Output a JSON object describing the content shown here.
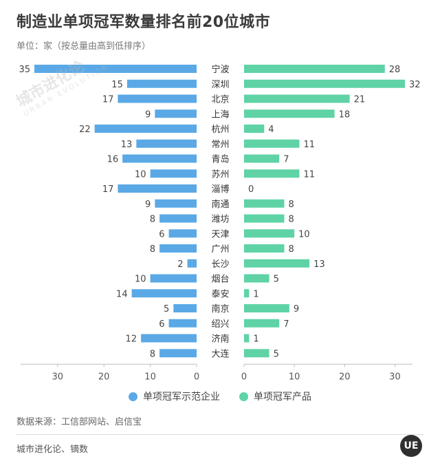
{
  "header": {
    "title": "制造业单项冠军数量排名前20位城市",
    "subtitle": "单位：家（按总量由高到低排序）"
  },
  "colors": {
    "left": "#5aa9e6",
    "right": "#5fd3a6",
    "axis": "#bdbdbd",
    "label": "#444444"
  },
  "legend": {
    "left_label": "单项冠军示范企业",
    "right_label": "单项冠军产品"
  },
  "footer": {
    "source": "数据来源：工信部网站、启信宝",
    "credit": "城市进化论、镝数",
    "logo_text": "UE"
  },
  "watermark": {
    "text": "城市进化论",
    "sub": "URBAN EVOLUTION"
  },
  "chart_data": {
    "type": "bar",
    "orientation": "horizontal-butterfly",
    "title": "制造业单项冠军数量排名前20位城市",
    "unit": "家",
    "categories": [
      "宁波",
      "深圳",
      "北京",
      "上海",
      "杭州",
      "常州",
      "青岛",
      "苏州",
      "淄博",
      "南通",
      "潍坊",
      "天津",
      "广州",
      "长沙",
      "烟台",
      "泰安",
      "南京",
      "绍兴",
      "济南",
      "大连"
    ],
    "series": [
      {
        "name": "单项冠军示范企业",
        "values": [
          35,
          15,
          17,
          9,
          22,
          13,
          16,
          10,
          17,
          9,
          8,
          6,
          8,
          2,
          10,
          14,
          5,
          6,
          12,
          8
        ]
      },
      {
        "name": "单项冠军产品",
        "values": [
          28,
          32,
          21,
          18,
          4,
          11,
          7,
          11,
          0,
          8,
          8,
          10,
          8,
          13,
          5,
          1,
          9,
          7,
          1,
          5
        ]
      }
    ],
    "left_axis": {
      "range": [
        35,
        0
      ],
      "ticks": [
        30,
        20,
        10,
        0
      ]
    },
    "right_axis": {
      "range": [
        0,
        32
      ],
      "ticks": [
        0,
        10,
        20,
        30
      ]
    },
    "legend_position": "bottom-center"
  }
}
